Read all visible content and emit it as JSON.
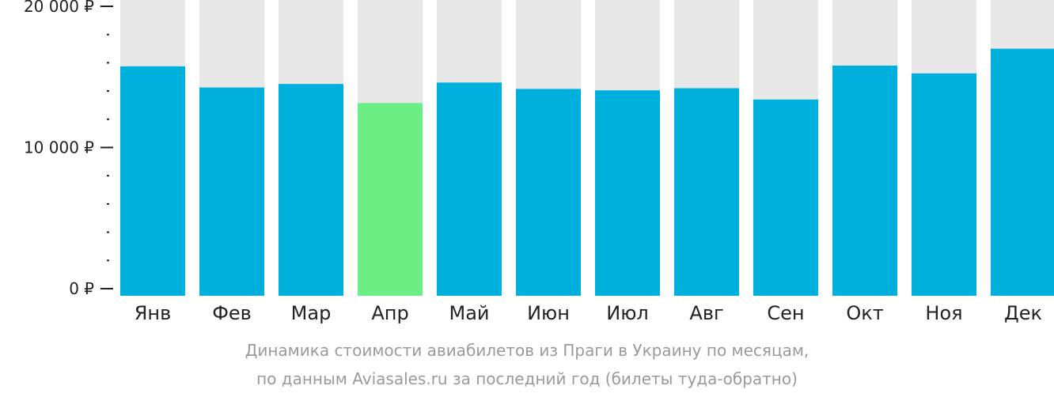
{
  "chart_data": {
    "type": "bar",
    "categories": [
      "Янв",
      "Фев",
      "Мар",
      "Апр",
      "Май",
      "Июн",
      "Июл",
      "Авг",
      "Сен",
      "Окт",
      "Ноя",
      "Дек"
    ],
    "values": [
      15750,
      14250,
      14500,
      13150,
      14600,
      14150,
      14050,
      14200,
      13400,
      15800,
      15250,
      17000
    ],
    "highlight_index": 3,
    "ylim": [
      0,
      20000
    ],
    "y_ticks": [
      0,
      10000,
      20000
    ],
    "y_tick_labels": [
      "0 ₽",
      "10 000 ₽",
      "20 000 ₽"
    ],
    "y_minor_step": 2000,
    "title": "",
    "xlabel": "",
    "ylabel": "",
    "colors": {
      "bar": "#00b0dc",
      "highlight": "#6bef84",
      "track": "#e8e8e8",
      "axis": "#222222"
    }
  },
  "caption": {
    "line1": "Динамика стоимости авиабилетов из Праги в Украину по месяцам,",
    "line2": "по данным Aviasales.ru за последний год (билеты туда-обратно)"
  }
}
